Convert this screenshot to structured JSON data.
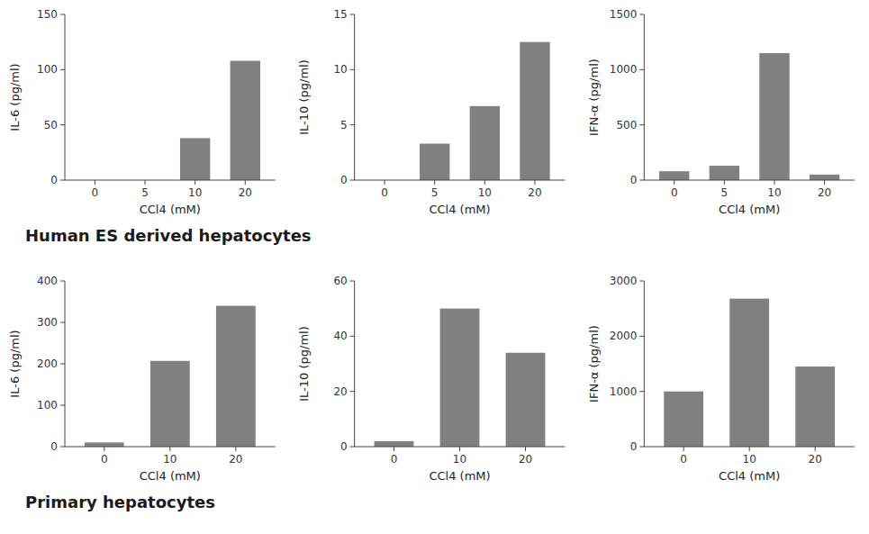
{
  "chart_data": [
    {
      "type": "bar",
      "y_label": "IL-6 (pg/ml)",
      "x_label": "CCl4 (mM)",
      "categories": [
        "0",
        "5",
        "10",
        "20"
      ],
      "values": [
        0,
        0,
        38,
        108
      ],
      "ylim": [
        0,
        150
      ],
      "yticks": [
        0,
        50,
        100,
        150
      ],
      "color": "#808080",
      "grid": false,
      "annotations": [
        "Human ES derived hepatocytes"
      ]
    },
    {
      "type": "bar",
      "y_label": "IL-10 (pg/ml)",
      "x_label": "CCl4 (mM)",
      "categories": [
        "0",
        "5",
        "10",
        "20"
      ],
      "values": [
        0,
        3.3,
        6.7,
        12.5
      ],
      "ylim": [
        0,
        15
      ],
      "yticks": [
        0,
        5,
        10,
        15
      ],
      "color": "#808080",
      "grid": false
    },
    {
      "type": "bar",
      "y_label": "IFN-α (pg/ml)",
      "x_label": "CCl4 (mM)",
      "categories": [
        "0",
        "5",
        "10",
        "20"
      ],
      "values": [
        80,
        130,
        1150,
        50
      ],
      "ylim": [
        0,
        1500
      ],
      "yticks": [
        0,
        500,
        1000,
        1500
      ],
      "color": "#808080",
      "grid": false
    },
    {
      "type": "bar",
      "y_label": "IL-6 (pg/ml)",
      "x_label": "CCl4 (mM)",
      "categories": [
        "0",
        "10",
        "20"
      ],
      "values": [
        10,
        207,
        340
      ],
      "ylim": [
        0,
        400
      ],
      "yticks": [
        0,
        100,
        200,
        300,
        400
      ],
      "color": "#808080",
      "grid": false,
      "annotations": [
        "Primary hepatocytes"
      ]
    },
    {
      "type": "bar",
      "y_label": "IL-10 (pg/ml)",
      "x_label": "CCl4 (mM)",
      "categories": [
        "0",
        "10",
        "20"
      ],
      "values": [
        2,
        50,
        34
      ],
      "ylim": [
        0,
        60
      ],
      "yticks": [
        0,
        20,
        40,
        60
      ],
      "color": "#808080",
      "grid": false
    },
    {
      "type": "bar",
      "y_label": "IFN-α (pg/ml)",
      "x_label": "CCl4 (mM)",
      "categories": [
        "0",
        "10",
        "20"
      ],
      "values": [
        1000,
        2680,
        1450
      ],
      "ylim": [
        0,
        3000
      ],
      "yticks": [
        0,
        1000,
        2000,
        3000
      ],
      "color": "#808080",
      "grid": false
    }
  ]
}
